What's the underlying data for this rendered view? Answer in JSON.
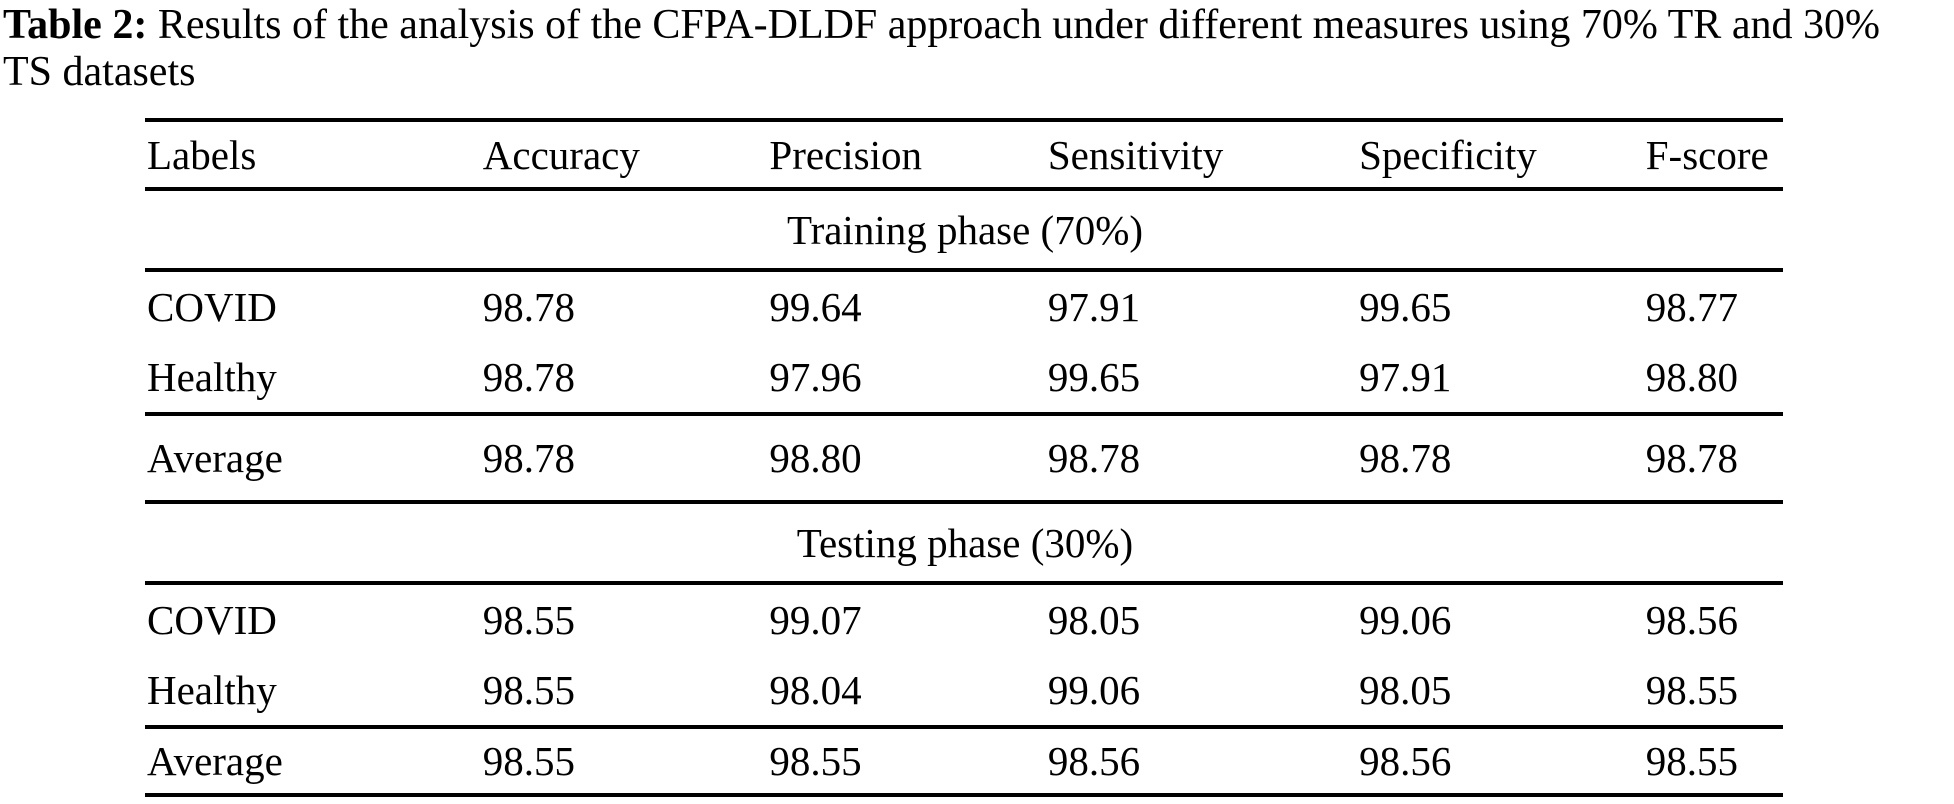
{
  "caption": {
    "label": "Table 2:",
    "text": "Results of the analysis of the CFPA-DLDF approach under different measures using 70% TR and 30% TS datasets"
  },
  "table": {
    "columns": [
      "Labels",
      "Accuracy",
      "Precision",
      "Sensitivity",
      "Specificity",
      "F-score"
    ],
    "sections": [
      {
        "title": "Training phase (70%)",
        "rows": [
          {
            "label": "COVID",
            "values": [
              "98.78",
              "99.64",
              "97.91",
              "99.65",
              "98.77"
            ]
          },
          {
            "label": "Healthy",
            "values": [
              "98.78",
              "97.96",
              "99.65",
              "97.91",
              "98.80"
            ]
          }
        ],
        "average": {
          "label": "Average",
          "values": [
            "98.78",
            "98.80",
            "98.78",
            "98.78",
            "98.78"
          ]
        }
      },
      {
        "title": "Testing phase (30%)",
        "rows": [
          {
            "label": "COVID",
            "values": [
              "98.55",
              "99.07",
              "98.05",
              "99.06",
              "98.56"
            ]
          },
          {
            "label": "Healthy",
            "values": [
              "98.55",
              "98.04",
              "99.06",
              "98.05",
              "98.55"
            ]
          }
        ],
        "average": {
          "label": "Average",
          "values": [
            "98.55",
            "98.55",
            "98.56",
            "98.56",
            "98.55"
          ]
        }
      }
    ]
  }
}
